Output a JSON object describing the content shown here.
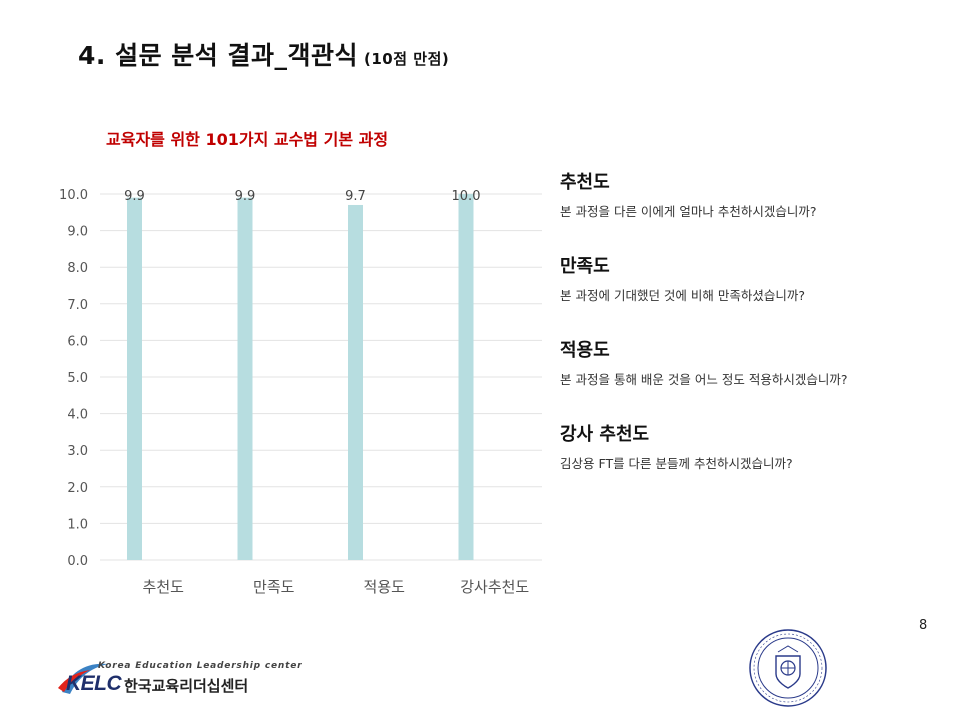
{
  "slide": {
    "title": "4. 설문 분석 결과_객관식",
    "title_note": "(10점 만점)",
    "page_number": "8"
  },
  "chart_data": {
    "type": "bar",
    "title": "교육자를 위한 101가지 교수법 기본 과정",
    "categories": [
      "추천도",
      "만족도",
      "적용도",
      "강사추천도"
    ],
    "values": [
      9.9,
      9.9,
      9.7,
      10.0
    ],
    "data_labels": [
      "9.9",
      "9.9",
      "9.7",
      "10.0"
    ],
    "ylim": [
      0,
      10
    ],
    "y_ticks": [
      "0.0",
      "1.0",
      "2.0",
      "3.0",
      "4.0",
      "5.0",
      "6.0",
      "7.0",
      "8.0",
      "9.0",
      "10.0"
    ],
    "grid": true,
    "bar_color": "#b7dde0",
    "title_color": "#c00000"
  },
  "questions": [
    {
      "heading": "추천도",
      "text": "본 과정을 다른 이에게 얼마나 추천하시겠습니까?"
    },
    {
      "heading": "만족도",
      "text": "본 과정에 기대했던 것에 비해 만족하셨습니까?"
    },
    {
      "heading": "적용도",
      "text": "본 과정을 통해 배운 것을 어느 정도 적용하시겠습니까?"
    },
    {
      "heading": "강사 추천도",
      "text": "김상용 FT를 다른 분들께 추천하시겠습니까?"
    }
  ],
  "footer": {
    "logo_top": "Korea Education Leadership center",
    "logo_abbr": "KELC",
    "logo_korean": "한국교육리더십센터",
    "seal_icon": "university-seal-icon"
  }
}
